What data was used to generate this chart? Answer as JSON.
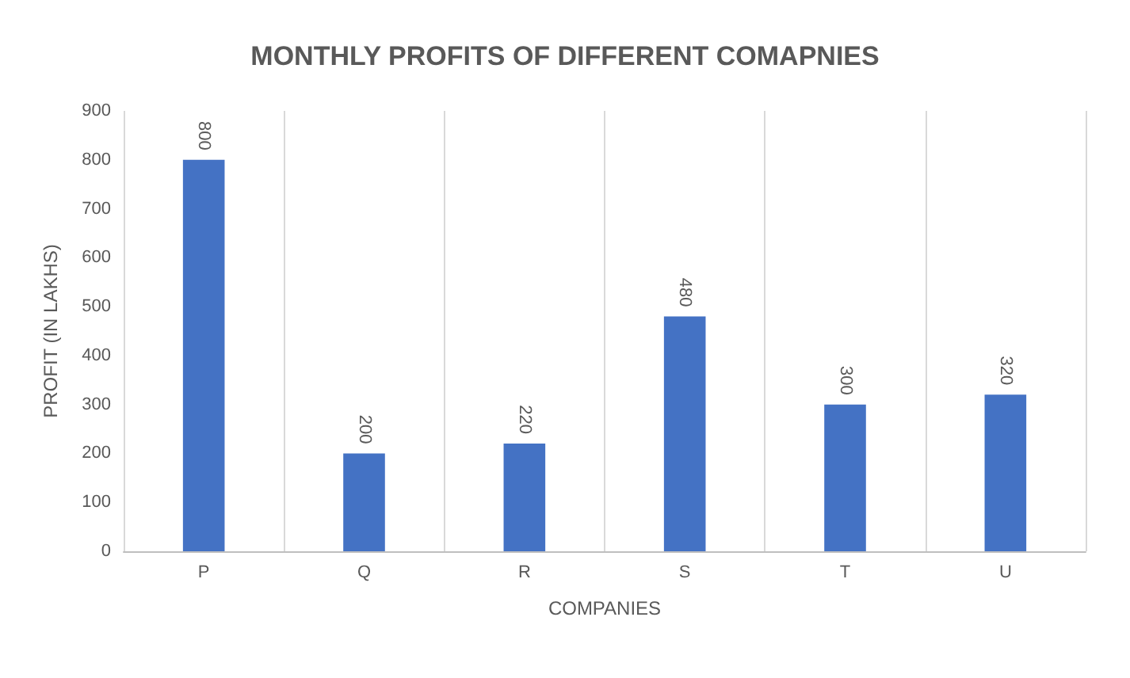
{
  "chart_data": {
    "type": "bar",
    "title": "MONTHLY PROFITS OF DIFFERENT COMAPNIES",
    "xlabel": "COMPANIES",
    "ylabel": "PROFIT (IN LAKHS)",
    "categories": [
      "P",
      "Q",
      "R",
      "S",
      "T",
      "U"
    ],
    "values": [
      800,
      200,
      220,
      480,
      300,
      320
    ],
    "color": "#4472c4",
    "ylim": [
      0,
      900
    ],
    "yticks": [
      0,
      100,
      200,
      300,
      400,
      500,
      600,
      700,
      800,
      900
    ],
    "grid": "x",
    "data_labels": true
  }
}
